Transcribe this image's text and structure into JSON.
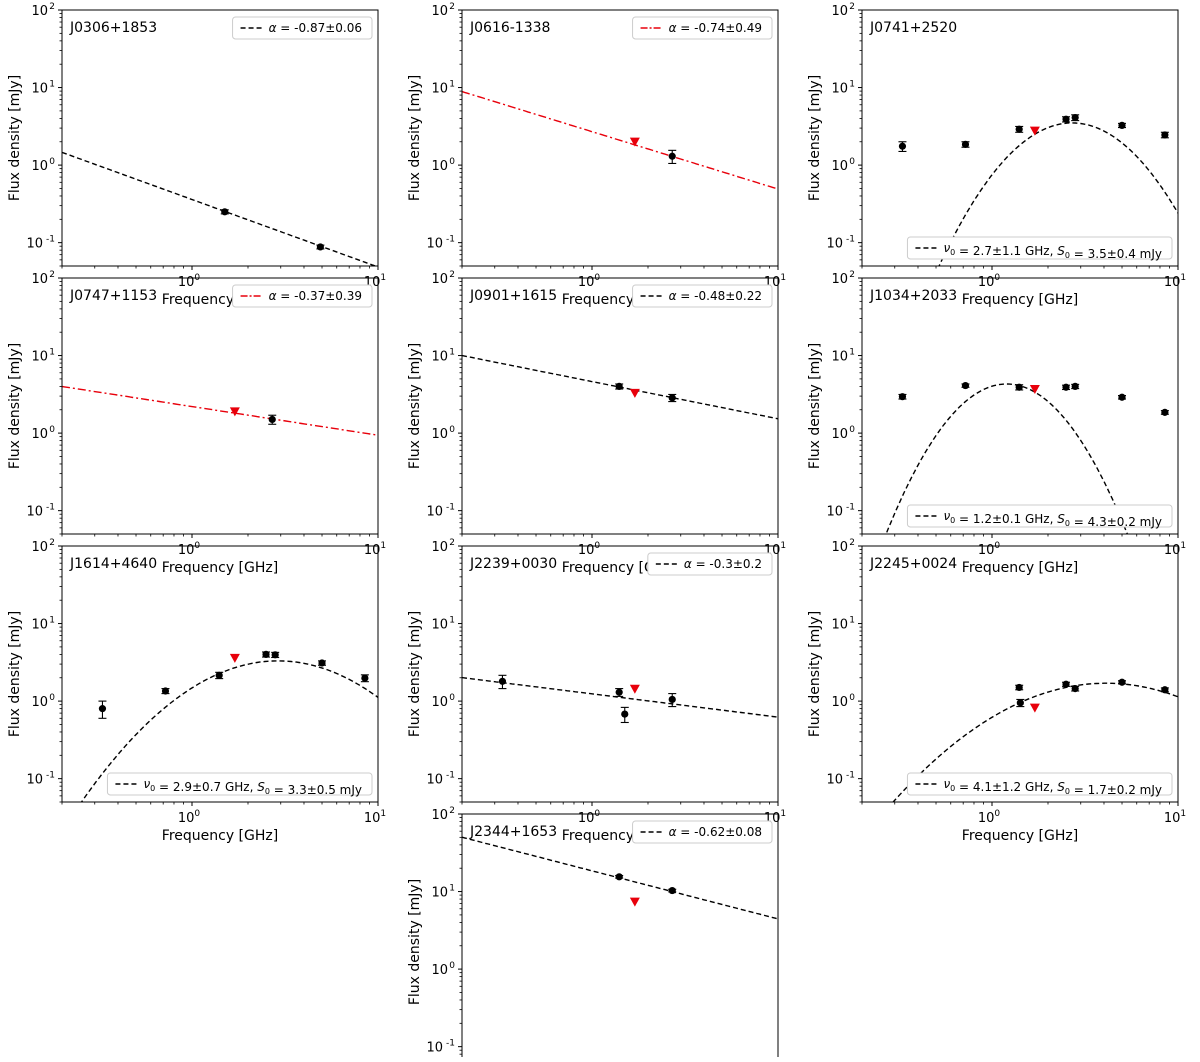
{
  "figure": {
    "xlabel": "Frequency [GHz]",
    "ylabel": "Flux density [mJy]",
    "colors": {
      "detection": "#000000",
      "upper_limit": "#e8000b",
      "fit_red": "#e8000b",
      "fit_black": "#000000"
    }
  },
  "chart_data": [
    {
      "type": "scatter",
      "title": "J0306+1853",
      "xscale": "log",
      "yscale": "log",
      "xlim": [
        0.2,
        10
      ],
      "ylim": [
        0.05,
        100
      ],
      "xtick_labels": [
        "10^0",
        "10^1"
      ],
      "ytick_labels": [
        "10^-1",
        "10^0",
        "10^1",
        "10^2"
      ],
      "legend": {
        "label": "α = -0.87±0.06",
        "placement": "upper right"
      },
      "fit": {
        "model": "power_law",
        "alpha": -0.87,
        "norm_at_1GHz": 0.36,
        "style": "dashed",
        "color": "#000000"
      },
      "detections": [
        {
          "x": 1.5,
          "y": 0.25,
          "err": 0.015
        },
        {
          "x": 4.9,
          "y": 0.088,
          "err": 0.005
        }
      ],
      "upper_limits": []
    },
    {
      "type": "scatter",
      "title": "J0616-1338",
      "xscale": "log",
      "yscale": "log",
      "xlim": [
        0.2,
        10
      ],
      "ylim": [
        0.05,
        100
      ],
      "xtick_labels": [
        "10^0",
        "10^1"
      ],
      "ytick_labels": [
        "10^-1",
        "10^0",
        "10^1",
        "10^2"
      ],
      "legend": {
        "label": "α = -0.74±0.49",
        "placement": "upper right"
      },
      "fit": {
        "model": "power_law",
        "alpha": -0.74,
        "norm_at_1GHz": 2.7,
        "style": "dashdot",
        "color": "#e8000b"
      },
      "detections": [
        {
          "x": 2.7,
          "y": 1.3,
          "err": 0.25
        }
      ],
      "upper_limits": [
        {
          "x": 1.7,
          "y": 1.95
        }
      ]
    },
    {
      "type": "scatter",
      "title": "J0741+2520",
      "xscale": "log",
      "yscale": "log",
      "xlim": [
        0.2,
        10
      ],
      "ylim": [
        0.05,
        100
      ],
      "xtick_labels": [
        "10^0",
        "10^1"
      ],
      "ytick_labels": [
        "10^-1",
        "10^0",
        "10^1",
        "10^2"
      ],
      "legend": {
        "label": "ν₀ = 2.7±1.1 GHz, S₀ = 3.5±0.4 mJy",
        "placement": "lower right"
      },
      "fit": {
        "model": "peaked",
        "nu0": 2.7,
        "S0": 3.5,
        "width": 3.6,
        "style": "dashed",
        "color": "#000000"
      },
      "detections": [
        {
          "x": 0.33,
          "y": 1.75,
          "err": 0.25
        },
        {
          "x": 0.72,
          "y": 1.85,
          "err": 0.15
        },
        {
          "x": 1.4,
          "y": 2.9,
          "err": 0.25
        },
        {
          "x": 2.5,
          "y": 3.9,
          "err": 0.3
        },
        {
          "x": 2.8,
          "y": 4.1,
          "err": 0.35
        },
        {
          "x": 5.0,
          "y": 3.25,
          "err": 0.2
        },
        {
          "x": 8.5,
          "y": 2.45,
          "err": 0.2
        }
      ],
      "upper_limits": [
        {
          "x": 1.7,
          "y": 2.7
        }
      ]
    },
    {
      "type": "scatter",
      "title": "J0747+1153",
      "xscale": "log",
      "yscale": "log",
      "xlim": [
        0.2,
        10
      ],
      "ylim": [
        0.05,
        100
      ],
      "xtick_labels": [
        "10^0",
        "10^1"
      ],
      "ytick_labels": [
        "10^-1",
        "10^0",
        "10^1",
        "10^2"
      ],
      "legend": {
        "label": "α = -0.37±0.39",
        "placement": "upper right"
      },
      "fit": {
        "model": "power_law",
        "alpha": -0.37,
        "norm_at_1GHz": 2.2,
        "style": "dashdot",
        "color": "#e8000b"
      },
      "detections": [
        {
          "x": 2.7,
          "y": 1.5,
          "err": 0.2
        }
      ],
      "upper_limits": [
        {
          "x": 1.7,
          "y": 1.85
        }
      ]
    },
    {
      "type": "scatter",
      "title": "J0901+1615",
      "xscale": "log",
      "yscale": "log",
      "xlim": [
        0.2,
        10
      ],
      "ylim": [
        0.05,
        100
      ],
      "xtick_labels": [
        "10^0",
        "10^1"
      ],
      "ytick_labels": [
        "10^-1",
        "10^0",
        "10^1",
        "10^2"
      ],
      "legend": {
        "label": "α = -0.48±0.22",
        "placement": "upper right"
      },
      "fit": {
        "model": "power_law",
        "alpha": -0.48,
        "norm_at_1GHz": 4.62,
        "style": "dashed",
        "color": "#000000"
      },
      "detections": [
        {
          "x": 1.4,
          "y": 4.0,
          "err": 0.3
        },
        {
          "x": 2.7,
          "y": 2.85,
          "err": 0.3
        }
      ],
      "upper_limits": [
        {
          "x": 1.7,
          "y": 3.2
        }
      ]
    },
    {
      "type": "scatter",
      "title": "J1034+2033",
      "xscale": "log",
      "yscale": "log",
      "xlim": [
        0.2,
        10
      ],
      "ylim": [
        0.05,
        100
      ],
      "xtick_labels": [
        "10^0",
        "10^1"
      ],
      "ytick_labels": [
        "10^-1",
        "10^0",
        "10^1",
        "10^2"
      ],
      "legend": {
        "label": "ν₀ = 1.2±0.1 GHz, S₀ = 4.3±0.2 mJy",
        "placement": "lower right"
      },
      "fit": {
        "model": "peaked",
        "nu0": 1.2,
        "S0": 4.3,
        "width": 4.6,
        "style": "dashed",
        "color": "#000000"
      },
      "detections": [
        {
          "x": 0.33,
          "y": 2.95,
          "err": 0.2
        },
        {
          "x": 0.72,
          "y": 4.1,
          "err": 0.2
        },
        {
          "x": 1.4,
          "y": 3.9,
          "err": 0.3
        },
        {
          "x": 2.5,
          "y": 3.9,
          "err": 0.25
        },
        {
          "x": 2.8,
          "y": 4.0,
          "err": 0.25
        },
        {
          "x": 5.0,
          "y": 2.9,
          "err": 0.15
        },
        {
          "x": 8.5,
          "y": 1.85,
          "err": 0.1
        }
      ],
      "upper_limits": [
        {
          "x": 1.7,
          "y": 3.6
        }
      ]
    },
    {
      "type": "scatter",
      "title": "J1614+4640",
      "xscale": "log",
      "yscale": "log",
      "xlim": [
        0.2,
        10
      ],
      "ylim": [
        0.05,
        100
      ],
      "xtick_labels": [
        "10^0",
        "10^1"
      ],
      "ytick_labels": [
        "10^-1",
        "10^0",
        "10^1",
        "10^2"
      ],
      "legend": {
        "label": "ν₀ = 2.9±0.7 GHz, S₀ = 3.3±0.5 mJy",
        "placement": "lower right"
      },
      "fit": {
        "model": "peaked",
        "nu0": 2.9,
        "S0": 3.3,
        "width": 1.63,
        "style": "dashed",
        "color": "#000000"
      },
      "detections": [
        {
          "x": 0.33,
          "y": 0.8,
          "err": 0.2
        },
        {
          "x": 0.72,
          "y": 1.35,
          "err": 0.1
        },
        {
          "x": 1.4,
          "y": 2.15,
          "err": 0.2
        },
        {
          "x": 2.5,
          "y": 4.0,
          "err": 0.3
        },
        {
          "x": 2.8,
          "y": 3.95,
          "err": 0.3
        },
        {
          "x": 5.0,
          "y": 3.1,
          "err": 0.2
        },
        {
          "x": 8.5,
          "y": 1.98,
          "err": 0.2
        }
      ],
      "upper_limits": [
        {
          "x": 1.7,
          "y": 3.5
        }
      ]
    },
    {
      "type": "scatter",
      "title": "J2239+0030",
      "xscale": "log",
      "yscale": "log",
      "xlim": [
        0.2,
        10
      ],
      "ylim": [
        0.05,
        100
      ],
      "xtick_labels": [
        "10^0",
        "10^1"
      ],
      "ytick_labels": [
        "10^-1",
        "10^0",
        "10^1",
        "10^2"
      ],
      "legend": {
        "label": "α = -0.3±0.2",
        "placement": "upper right"
      },
      "fit": {
        "model": "power_law",
        "alpha": -0.3,
        "norm_at_1GHz": 1.24,
        "style": "dashed",
        "color": "#000000"
      },
      "detections": [
        {
          "x": 0.33,
          "y": 1.8,
          "err": 0.35
        },
        {
          "x": 1.4,
          "y": 1.3,
          "err": 0.15
        },
        {
          "x": 1.5,
          "y": 0.68,
          "err": 0.15
        },
        {
          "x": 2.7,
          "y": 1.05,
          "err": 0.2
        }
      ],
      "upper_limits": [
        {
          "x": 1.7,
          "y": 1.4
        }
      ]
    },
    {
      "type": "scatter",
      "title": "J2245+0024",
      "xscale": "log",
      "yscale": "log",
      "xlim": [
        0.2,
        10
      ],
      "ylim": [
        0.05,
        100
      ],
      "xtick_labels": [
        "10^0",
        "10^1"
      ],
      "ytick_labels": [
        "10^-1",
        "10^0",
        "10^1",
        "10^2"
      ],
      "legend": {
        "label": "ν₀ = 4.1±1.2 GHz, S₀ = 1.7±0.2 mJy",
        "placement": "lower right"
      },
      "fit": {
        "model": "peaked",
        "nu0": 4.1,
        "S0": 1.7,
        "width": 1.17,
        "style": "dashed",
        "color": "#000000"
      },
      "detections": [
        {
          "x": 1.4,
          "y": 1.5,
          "err": 0.1
        },
        {
          "x": 1.42,
          "y": 0.95,
          "err": 0.1
        },
        {
          "x": 2.5,
          "y": 1.65,
          "err": 0.1
        },
        {
          "x": 2.8,
          "y": 1.45,
          "err": 0.1
        },
        {
          "x": 5.0,
          "y": 1.75,
          "err": 0.08
        },
        {
          "x": 8.5,
          "y": 1.4,
          "err": 0.08
        }
      ],
      "upper_limits": [
        {
          "x": 1.7,
          "y": 0.8
        }
      ]
    },
    {
      "type": "scatter",
      "title": "J2344+1653",
      "xscale": "log",
      "yscale": "log",
      "xlim": [
        0.2,
        10
      ],
      "ylim": [
        0.05,
        100
      ],
      "xtick_labels": [
        "10^0",
        "10^1"
      ],
      "ytick_labels": [
        "10^-1",
        "10^0",
        "10^1",
        "10^2"
      ],
      "legend": {
        "label": "α = -0.62±0.08",
        "placement": "upper right"
      },
      "fit": {
        "model": "power_law",
        "alpha": -0.62,
        "norm_at_1GHz": 18.5,
        "style": "dashed",
        "color": "#000000"
      },
      "detections": [
        {
          "x": 1.4,
          "y": 15.5,
          "err": 0.6
        },
        {
          "x": 2.7,
          "y": 10.3,
          "err": 0.4
        }
      ],
      "upper_limits": [
        {
          "x": 1.7,
          "y": 7.2
        }
      ]
    }
  ]
}
